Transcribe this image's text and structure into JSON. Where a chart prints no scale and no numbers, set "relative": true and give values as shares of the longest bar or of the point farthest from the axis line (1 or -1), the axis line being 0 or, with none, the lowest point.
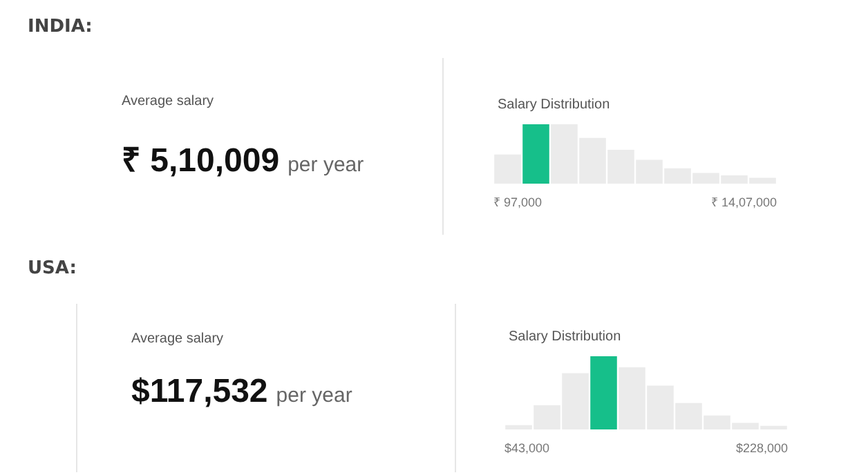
{
  "chart_data": [
    {
      "type": "other",
      "title": "INDIA:",
      "annotations": [
        "Average salary",
        "₹ 5,10,009",
        "per year"
      ]
    },
    {
      "type": "bar",
      "title": "Salary Distribution",
      "relative": true,
      "categories": [
        null,
        null,
        null,
        null,
        null,
        null,
        null,
        null,
        null,
        null
      ],
      "values": [
        0.49,
        1,
        1,
        0.77,
        0.57,
        0.4,
        0.26,
        0.18,
        0.14,
        0.1
      ],
      "colors": [
        "#ebebeb",
        "#16bf8a",
        "#ebebeb",
        "#ebebeb",
        "#ebebeb",
        "#ebebeb",
        "#ebebeb",
        "#ebebeb",
        "#ebebeb",
        "#ebebeb"
      ],
      "annotations": [
        "₹ 97,000",
        "₹ 14,07,000"
      ]
    },
    {
      "type": "other",
      "title": "USA:",
      "annotations": [
        "Average salary",
        "$117,532",
        "per year"
      ]
    },
    {
      "type": "bar",
      "title": "Salary Distribution",
      "relative": true,
      "categories": [
        null,
        null,
        null,
        null,
        null,
        null,
        null,
        null,
        null,
        null
      ],
      "values": [
        0.06,
        0.33,
        0.77,
        1,
        0.85,
        0.6,
        0.36,
        0.19,
        0.09,
        0.05
      ],
      "colors": [
        "#ebebeb",
        "#ebebeb",
        "#ebebeb",
        "#16bf8a",
        "#ebebeb",
        "#ebebeb",
        "#ebebeb",
        "#ebebeb",
        "#ebebeb",
        "#ebebeb"
      ],
      "annotations": [
        "$43,000",
        "$228,000"
      ]
    }
  ]
}
